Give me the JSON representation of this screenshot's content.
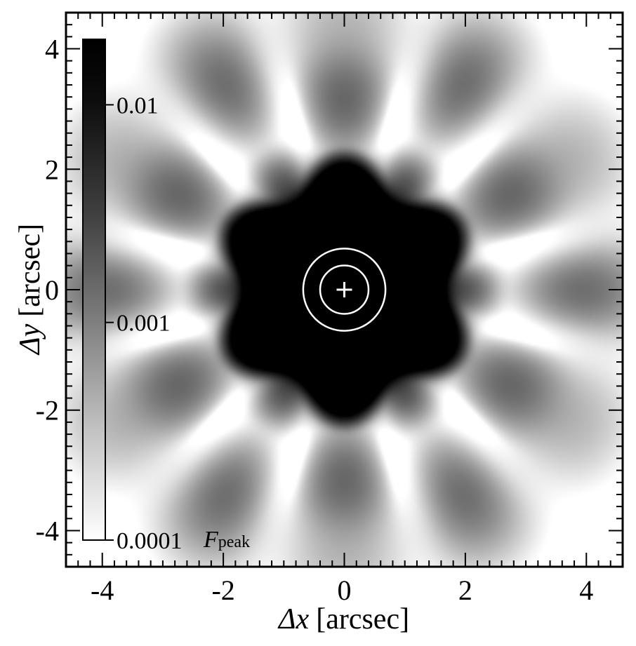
{
  "chart_data": {
    "type": "heatmap",
    "title": "",
    "x_label": {
      "symbol": "Δx",
      "unit": "[arcsec]"
    },
    "y_label": {
      "symbol": "Δy",
      "unit": "[arcsec]"
    },
    "xlim": [
      -4.6,
      4.6
    ],
    "ylim": [
      -4.6,
      4.6
    ],
    "x_ticks": [
      -4,
      -2,
      0,
      2,
      4
    ],
    "x_tick_labels": [
      "-4",
      "-2",
      "0",
      "2",
      "4"
    ],
    "y_ticks": [
      -4,
      -2,
      0,
      2,
      4
    ],
    "y_tick_labels": [
      "-4",
      "-2",
      "0",
      "2",
      "4"
    ],
    "minor_tick_step": 0.2,
    "scale": "log",
    "colormap": "grayscale-inverted",
    "colors": {
      "high": "#000000",
      "low": "#ffffff",
      "overlay": "#ffffff"
    },
    "colorbar": {
      "position": "left-inside",
      "range": [
        0.0001,
        0.02
      ],
      "ticks": [
        0.01,
        0.001,
        0.0001
      ],
      "tick_labels": [
        "0.01",
        "0.001",
        "0.0001"
      ],
      "unit_symbol": "F",
      "unit_subscript": "peak"
    },
    "psf": {
      "symmetry": 6,
      "core_sigma_arcsec": 0.55,
      "first_dark_ring_radius_arcsec": 0.95,
      "hexagonal_halo_radius_arcsec": 1.65,
      "outer_lobe_radii_arcsec": [
        1.95,
        3.15,
        3.9
      ]
    },
    "overlay_circles_radius_arcsec": [
      0.4,
      0.68
    ],
    "center_marker": {
      "x": 0,
      "y": 0,
      "shape": "plus"
    }
  }
}
